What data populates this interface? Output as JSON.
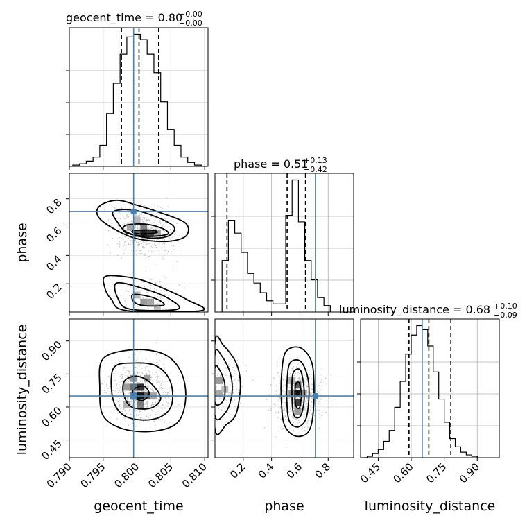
{
  "chart_data": {
    "type": "corner",
    "parameters": [
      "geocent_time",
      "phase",
      "luminosity_distance"
    ],
    "truth": {
      "geocent_time": 0.7995,
      "phase": 0.71,
      "luminosity_distance": 0.65
    },
    "truth_color": "#4682b4",
    "grid": true,
    "titles": [
      {
        "param": "geocent_time",
        "text": "geocent_time = 0.80",
        "sup": "+0.00",
        "sub": "−0.00"
      },
      {
        "param": "phase",
        "text": "phase = 0.51",
        "sup": "+0.13",
        "sub": "−0.42"
      },
      {
        "param": "luminosity_distance",
        "text": "luminosity_distance = 0.68",
        "sup": "+0.10",
        "sub": "−0.09"
      }
    ],
    "axes": {
      "geocent_time": {
        "label": "geocent_time",
        "range": [
          0.79,
          0.8105
        ],
        "ticks": [
          "0.790",
          "0.795",
          "0.800",
          "0.805",
          "0.810"
        ],
        "tick_values": [
          0.79,
          0.795,
          0.8,
          0.805,
          0.81
        ]
      },
      "phase": {
        "label": "phase",
        "range": [
          0.0,
          0.98
        ],
        "ticks": [
          "0.2",
          "0.4",
          "0.6",
          "0.8"
        ],
        "tick_values": [
          0.2,
          0.4,
          0.6,
          0.8
        ]
      },
      "luminosity_distance": {
        "label": "luminosity_distance",
        "range": [
          0.37,
          1.0
        ],
        "ticks": [
          "0.45",
          "0.60",
          "0.75",
          "0.90"
        ],
        "tick_values": [
          0.45,
          0.6,
          0.75,
          0.9
        ]
      }
    },
    "histograms": [
      {
        "param": "geocent_time",
        "edges_start": 0.7905,
        "bin_width": 0.001,
        "counts": [
          1,
          2,
          4,
          7,
          16,
          40,
          63,
          85,
          98,
          100,
          96,
          85,
          71,
          49,
          28,
          16,
          7,
          3,
          1,
          0
        ],
        "quantiles": [
          0.7977,
          0.8003,
          0.8032
        ]
      },
      {
        "param": "phase",
        "edges_start": 0.05,
        "bin_width": 0.045,
        "counts": [
          32,
          57,
          49,
          37,
          24,
          18,
          12,
          7,
          5,
          5,
          60,
          82,
          56,
          32,
          20,
          9,
          4
        ],
        "quantiles": [
          0.085,
          0.51,
          0.64
        ]
      },
      {
        "param": "luminosity_distance",
        "edges_start": 0.375,
        "bin_width": 0.025,
        "counts": [
          0,
          1,
          3,
          6,
          12,
          20,
          37,
          56,
          76,
          90,
          97,
          94,
          82,
          63,
          43,
          26,
          14,
          8,
          4,
          2,
          1
        ],
        "quantiles": [
          0.59,
          0.68,
          0.78
        ]
      }
    ],
    "pairs": [
      {
        "x": "geocent_time",
        "y": "phase",
        "contours": [
          [
            [
              0.7945,
              0.75
            ],
            [
              0.797,
              0.79
            ],
            [
              0.8,
              0.755
            ],
            [
              0.803,
              0.71
            ],
            [
              0.807,
              0.635
            ],
            [
              0.8075,
              0.555
            ],
            [
              0.806,
              0.51
            ],
            [
              0.803,
              0.5
            ],
            [
              0.7995,
              0.525
            ],
            [
              0.796,
              0.605
            ],
            [
              0.7942,
              0.68
            ]
          ],
          [
            [
              0.7965,
              0.71
            ],
            [
              0.7995,
              0.72
            ],
            [
              0.803,
              0.67
            ],
            [
              0.8055,
              0.6
            ],
            [
              0.8045,
              0.535
            ],
            [
              0.8015,
              0.525
            ],
            [
              0.7985,
              0.565
            ],
            [
              0.7972,
              0.63
            ]
          ],
          [
            [
              0.7985,
              0.615
            ],
            [
              0.8015,
              0.62
            ],
            [
              0.804,
              0.585
            ],
            [
              0.8045,
              0.55
            ],
            [
              0.802,
              0.535
            ],
            [
              0.7995,
              0.545
            ],
            [
              0.798,
              0.575
            ]
          ],
          [
            [
              0.7995,
              0.575
            ],
            [
              0.802,
              0.58
            ],
            [
              0.803,
              0.563
            ],
            [
              0.801,
              0.552
            ],
            [
              0.7995,
              0.56
            ]
          ],
          [
            [
              0.7955,
              0.255
            ],
            [
              0.8,
              0.235
            ],
            [
              0.804,
              0.165
            ],
            [
              0.8075,
              0.085
            ],
            [
              0.8095,
              0.01
            ],
            [
              0.7985,
              0.01
            ],
            [
              0.7962,
              0.09
            ],
            [
              0.7952,
              0.18
            ]
          ],
          [
            [
              0.797,
              0.205
            ],
            [
              0.801,
              0.165
            ],
            [
              0.8045,
              0.1
            ],
            [
              0.806,
              0.02
            ],
            [
              0.799,
              0.02
            ],
            [
              0.7972,
              0.095
            ]
          ],
          [
            [
              0.7995,
              0.125
            ],
            [
              0.8025,
              0.1
            ],
            [
              0.804,
              0.05
            ],
            [
              0.801,
              0.045
            ],
            [
              0.7995,
              0.075
            ]
          ]
        ],
        "density_cells": [
          {
            "x": 0.801,
            "y": 0.555,
            "v": 0.9
          },
          {
            "x": 0.802,
            "y": 0.555,
            "v": 0.75
          },
          {
            "x": 0.8,
            "y": 0.555,
            "v": 0.55
          },
          {
            "x": 0.801,
            "y": 0.6,
            "v": 0.45
          },
          {
            "x": 0.799,
            "y": 0.6,
            "v": 0.3
          },
          {
            "x": 0.8,
            "y": 0.65,
            "v": 0.22
          },
          {
            "x": 0.803,
            "y": 0.555,
            "v": 0.35
          },
          {
            "x": 0.801,
            "y": 0.07,
            "v": 0.35
          },
          {
            "x": 0.802,
            "y": 0.07,
            "v": 0.3
          },
          {
            "x": 0.8,
            "y": 0.12,
            "v": 0.2
          },
          {
            "x": 0.803,
            "y": 0.03,
            "v": 0.22
          }
        ]
      },
      {
        "x": "geocent_time",
        "y": "luminosity_distance",
        "contours": [
          [
            [
              0.795,
              0.82
            ],
            [
              0.7995,
              0.86
            ],
            [
              0.804,
              0.84
            ],
            [
              0.8065,
              0.76
            ],
            [
              0.8072,
              0.64
            ],
            [
              0.806,
              0.53
            ],
            [
              0.8025,
              0.49
            ],
            [
              0.798,
              0.5
            ],
            [
              0.795,
              0.56
            ],
            [
              0.7945,
              0.69
            ]
          ],
          [
            [
              0.7965,
              0.775
            ],
            [
              0.7995,
              0.8
            ],
            [
              0.803,
              0.785
            ],
            [
              0.805,
              0.71
            ],
            [
              0.805,
              0.6
            ],
            [
              0.8025,
              0.545
            ],
            [
              0.7985,
              0.555
            ],
            [
              0.7965,
              0.63
            ]
          ],
          [
            [
              0.7982,
              0.72
            ],
            [
              0.8,
              0.74
            ],
            [
              0.802,
              0.71
            ],
            [
              0.8035,
              0.64
            ],
            [
              0.802,
              0.595
            ],
            [
              0.7992,
              0.6
            ],
            [
              0.798,
              0.66
            ]
          ],
          [
            [
              0.7995,
              0.68
            ],
            [
              0.801,
              0.695
            ],
            [
              0.8018,
              0.66
            ],
            [
              0.8008,
              0.63
            ],
            [
              0.7995,
              0.645
            ]
          ]
        ],
        "density_cells": [
          {
            "x": 0.8005,
            "y": 0.65,
            "v": 0.95
          },
          {
            "x": 0.8005,
            "y": 0.69,
            "v": 0.8
          },
          {
            "x": 0.7995,
            "y": 0.69,
            "v": 0.55
          },
          {
            "x": 0.8015,
            "y": 0.65,
            "v": 0.6
          },
          {
            "x": 0.7995,
            "y": 0.65,
            "v": 0.5
          },
          {
            "x": 0.7995,
            "y": 0.73,
            "v": 0.35
          },
          {
            "x": 0.7985,
            "y": 0.69,
            "v": 0.35
          },
          {
            "x": 0.8015,
            "y": 0.73,
            "v": 0.35
          },
          {
            "x": 0.8005,
            "y": 0.61,
            "v": 0.5
          },
          {
            "x": 0.8025,
            "y": 0.65,
            "v": 0.3
          },
          {
            "x": 0.7985,
            "y": 0.61,
            "v": 0.25
          }
        ]
      },
      {
        "x": "phase",
        "y": "luminosity_distance",
        "contours": [
          [
            [
              0.0,
              0.895
            ],
            [
              0.06,
              0.88
            ],
            [
              0.15,
              0.8
            ],
            [
              0.18,
              0.7
            ],
            [
              0.15,
              0.57
            ],
            [
              0.08,
              0.52
            ],
            [
              0.0,
              0.5
            ]
          ],
          [
            [
              0.0,
              0.84
            ],
            [
              0.05,
              0.83
            ],
            [
              0.11,
              0.75
            ],
            [
              0.12,
              0.66
            ],
            [
              0.08,
              0.58
            ],
            [
              0.0,
              0.56
            ]
          ],
          [
            [
              0.0,
              0.78
            ],
            [
              0.04,
              0.76
            ],
            [
              0.07,
              0.7
            ],
            [
              0.06,
              0.63
            ],
            [
              0.0,
              0.62
            ]
          ],
          [
            [
              0.5,
              0.85
            ],
            [
              0.6,
              0.87
            ],
            [
              0.68,
              0.81
            ],
            [
              0.7,
              0.7
            ],
            [
              0.69,
              0.55
            ],
            [
              0.65,
              0.48
            ],
            [
              0.56,
              0.47
            ],
            [
              0.49,
              0.52
            ],
            [
              0.47,
              0.62
            ],
            [
              0.47,
              0.74
            ]
          ],
          [
            [
              0.53,
              0.8
            ],
            [
              0.6,
              0.81
            ],
            [
              0.65,
              0.75
            ],
            [
              0.665,
              0.66
            ],
            [
              0.645,
              0.55
            ],
            [
              0.59,
              0.51
            ],
            [
              0.53,
              0.53
            ],
            [
              0.51,
              0.6
            ],
            [
              0.51,
              0.72
            ]
          ],
          [
            [
              0.55,
              0.75
            ],
            [
              0.6,
              0.77
            ],
            [
              0.625,
              0.71
            ],
            [
              0.63,
              0.63
            ],
            [
              0.605,
              0.56
            ],
            [
              0.56,
              0.56
            ],
            [
              0.545,
              0.63
            ]
          ],
          [
            [
              0.57,
              0.7
            ],
            [
              0.595,
              0.71
            ],
            [
              0.61,
              0.66
            ],
            [
              0.6,
              0.6
            ],
            [
              0.575,
              0.6
            ],
            [
              0.565,
              0.64
            ]
          ]
        ],
        "density_cells": [
          {
            "x": 0.03,
            "y": 0.72,
            "v": 0.35
          },
          {
            "x": 0.03,
            "y": 0.66,
            "v": 0.3
          },
          {
            "x": 0.07,
            "y": 0.68,
            "v": 0.2
          },
          {
            "x": 0.585,
            "y": 0.66,
            "v": 0.95
          },
          {
            "x": 0.585,
            "y": 0.62,
            "v": 0.75
          },
          {
            "x": 0.585,
            "y": 0.7,
            "v": 0.6
          },
          {
            "x": 0.545,
            "y": 0.66,
            "v": 0.4
          },
          {
            "x": 0.625,
            "y": 0.66,
            "v": 0.4
          },
          {
            "x": 0.585,
            "y": 0.58,
            "v": 0.35
          },
          {
            "x": 0.545,
            "y": 0.72,
            "v": 0.25
          }
        ]
      }
    ]
  }
}
